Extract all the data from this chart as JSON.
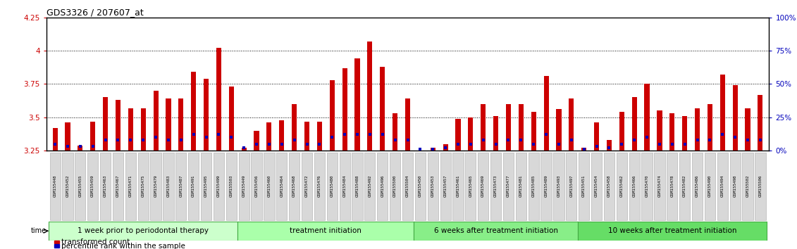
{
  "title": "GDS3326 / 207607_at",
  "samples": [
    "GSM155448",
    "GSM155452",
    "GSM155455",
    "GSM155459",
    "GSM155463",
    "GSM155467",
    "GSM155471",
    "GSM155475",
    "GSM155479",
    "GSM155483",
    "GSM155487",
    "GSM155491",
    "GSM155495",
    "GSM155499",
    "GSM155503",
    "GSM155449",
    "GSM155456",
    "GSM155460",
    "GSM155464",
    "GSM155468",
    "GSM155472",
    "GSM155476",
    "GSM155480",
    "GSM155484",
    "GSM155488",
    "GSM155492",
    "GSM155496",
    "GSM155500",
    "GSM155504",
    "GSM155450",
    "GSM155453",
    "GSM155457",
    "GSM155461",
    "GSM155465",
    "GSM155469",
    "GSM155473",
    "GSM155477",
    "GSM155481",
    "GSM155485",
    "GSM155489",
    "GSM155493",
    "GSM155497",
    "GSM155451",
    "GSM155454",
    "GSM155458",
    "GSM155462",
    "GSM155466",
    "GSM155470",
    "GSM155474",
    "GSM155478",
    "GSM155482",
    "GSM155486",
    "GSM155490",
    "GSM155494",
    "GSM155498",
    "GSM155502",
    "GSM155506"
  ],
  "red_values": [
    3.42,
    3.46,
    3.29,
    3.47,
    3.65,
    3.63,
    3.57,
    3.57,
    3.7,
    3.64,
    3.64,
    3.84,
    3.79,
    4.02,
    3.73,
    3.27,
    3.4,
    3.46,
    3.48,
    3.6,
    3.47,
    3.47,
    3.78,
    3.87,
    3.94,
    4.07,
    3.88,
    3.53,
    3.64,
    3.25,
    3.27,
    3.3,
    3.49,
    3.5,
    3.6,
    3.51,
    3.6,
    3.6,
    3.54,
    3.81,
    3.56,
    3.64,
    3.27,
    3.46,
    3.33,
    3.54,
    3.65,
    3.75,
    3.55,
    3.53,
    3.51,
    3.57,
    3.6,
    3.82,
    3.74,
    3.57,
    3.67
  ],
  "blue_values": [
    5,
    3,
    3,
    3,
    8,
    8,
    8,
    8,
    10,
    8,
    8,
    12,
    10,
    12,
    10,
    2,
    5,
    5,
    5,
    8,
    5,
    5,
    10,
    12,
    12,
    12,
    12,
    8,
    8,
    1,
    1,
    2,
    5,
    5,
    8,
    5,
    8,
    8,
    5,
    12,
    5,
    8,
    1,
    3,
    2,
    5,
    8,
    10,
    5,
    5,
    5,
    8,
    8,
    12,
    10,
    8,
    8
  ],
  "groups": [
    {
      "label": "1 week prior to periodontal therapy",
      "start": 0,
      "end": 15,
      "color": "#ccffcc"
    },
    {
      "label": "treatment initiation",
      "start": 15,
      "end": 29,
      "color": "#aaffaa"
    },
    {
      "label": "6 weeks after treatment initiation",
      "start": 29,
      "end": 42,
      "color": "#88ee88"
    },
    {
      "label": "10 weeks after treatment initiation",
      "start": 42,
      "end": 57,
      "color": "#66dd66"
    }
  ],
  "ylim_left": [
    3.25,
    4.25
  ],
  "yticks_left": [
    3.25,
    3.5,
    3.75,
    4.0,
    4.25
  ],
  "yticks_right": [
    0,
    25,
    50,
    75,
    100
  ],
  "bar_color": "#cc0000",
  "blue_bar_color": "#0000bb",
  "bg_color": "#ffffff"
}
